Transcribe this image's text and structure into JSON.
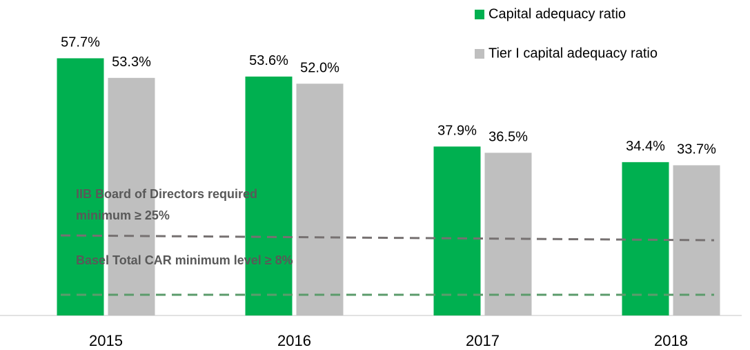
{
  "chart_data": {
    "type": "bar",
    "categories": [
      "2015",
      "2016",
      "2017",
      "2018"
    ],
    "series": [
      {
        "name": "Capital adequacy ratio",
        "color": "#00b050",
        "values": [
          57.7,
          53.6,
          37.9,
          34.4
        ],
        "value_labels": [
          "57.7%",
          "53.6%",
          "37.9%",
          "34.4%"
        ]
      },
      {
        "name": "Tier I capital adequacy ratio",
        "color": "#bfbfbf",
        "values": [
          53.3,
          52.0,
          36.5,
          33.7
        ],
        "value_labels": [
          "53.3%",
          "52.0%",
          "36.5%",
          "33.7%"
        ]
      }
    ],
    "ylim": [
      0,
      70
    ],
    "legend": "top-right",
    "annotations": [
      {
        "lines": [
          "IIB Board of Directors required",
          "minimum ≥ 25%"
        ]
      },
      {
        "lines": [
          "Basel Total CAR minimum level ≥ 8%"
        ]
      }
    ]
  }
}
